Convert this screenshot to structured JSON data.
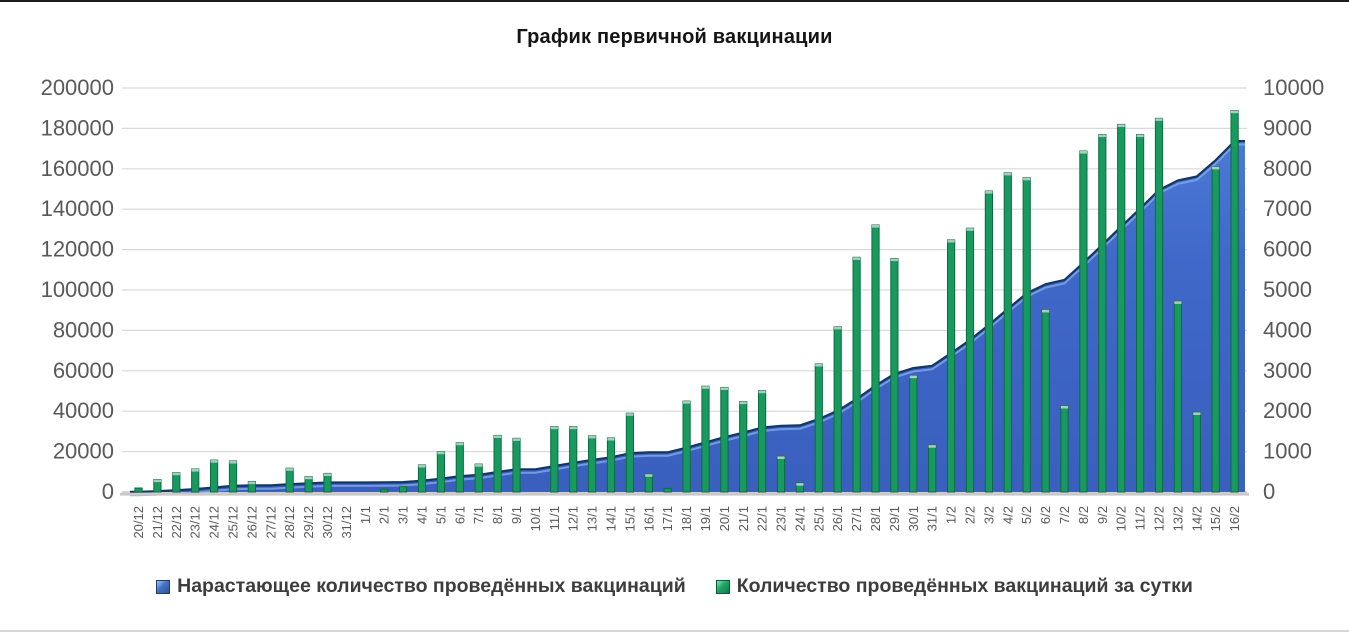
{
  "title": "График первичной вакцинации",
  "colors": {
    "bar_green": "#189a5e",
    "bar_green_edge": "#0c6b42",
    "bar_green_cap": "#b0c9bf",
    "area_blue_top": "#4d79d6",
    "area_blue_bottom": "#3a5fbe",
    "area_edge": "#16365c",
    "area_highlight": "#7fa5e8",
    "grid": "#d9d9d9",
    "baseline": "#c9c9c9",
    "axis_text": "#595959",
    "title_text": "#141414",
    "legend_text": "#3d3d3d"
  },
  "chart_data": {
    "type": "combo",
    "title": "График первичной вакцинации",
    "categories": [
      "20/12",
      "21/12",
      "22/12",
      "23/12",
      "24/12",
      "25/12",
      "26/12",
      "27/12",
      "28/12",
      "29/12",
      "30/12",
      "31/12",
      "1/1",
      "2/1",
      "3/1",
      "4/1",
      "5/1",
      "6/1",
      "7/1",
      "8/1",
      "9/1",
      "10/1",
      "11/1",
      "12/1",
      "13/1",
      "14/1",
      "15/1",
      "16/1",
      "17/1",
      "18/1",
      "19/1",
      "20/1",
      "21/1",
      "22/1",
      "23/1",
      "24/1",
      "25/1",
      "26/1",
      "27/1",
      "28/1",
      "29/1",
      "30/1",
      "31/1",
      "1/2",
      "2/2",
      "3/2",
      "4/2",
      "5/2",
      "6/2",
      "7/2",
      "8/2",
      "9/2",
      "10/2",
      "11/2",
      "12/2",
      "13/2",
      "14/2",
      "15/2",
      "16/2"
    ],
    "series": [
      {
        "name": "Нарастающее количество проведённых вакцинаций",
        "type": "area",
        "axis": "left",
        "values": [
          100,
          410,
          890,
          1460,
          2250,
          3020,
          3280,
          3280,
          3870,
          4250,
          4710,
          4710,
          4710,
          4780,
          4910,
          5580,
          6580,
          7800,
          8490,
          9890,
          11220,
          11220,
          12840,
          14460,
          15850,
          17190,
          19140,
          19580,
          19670,
          21920,
          24540,
          27130,
          29370,
          31880,
          32760,
          32980,
          36150,
          40240,
          46050,
          52660,
          58440,
          61320,
          62480,
          68720,
          75250,
          82700,
          90600,
          98380,
          102890,
          105020,
          113460,
          122310,
          131410,
          140260,
          149510,
          154230,
          156200,
          164250,
          173690
        ]
      },
      {
        "name": "Количество проведённых вакцинаций за сутки",
        "type": "bar",
        "axis": "right",
        "values": [
          100,
          310,
          480,
          570,
          790,
          770,
          260,
          0,
          590,
          380,
          460,
          0,
          0,
          70,
          130,
          670,
          1000,
          1220,
          690,
          1400,
          1330,
          0,
          1620,
          1620,
          1390,
          1340,
          1950,
          440,
          90,
          2250,
          2620,
          2590,
          2240,
          2510,
          880,
          220,
          3170,
          4090,
          5810,
          6610,
          5780,
          2880,
          1160,
          6240,
          6530,
          7450,
          7900,
          7780,
          4510,
          2130,
          8440,
          8850,
          9100,
          8850,
          9250,
          4720,
          1970,
          8050,
          9440
        ]
      }
    ],
    "left_axis": {
      "min": 0,
      "max": 200000,
      "step": 20000
    },
    "right_axis": {
      "min": 0,
      "max": 10000,
      "step": 1000
    },
    "grid": "horizontal",
    "legend_position": "bottom"
  }
}
